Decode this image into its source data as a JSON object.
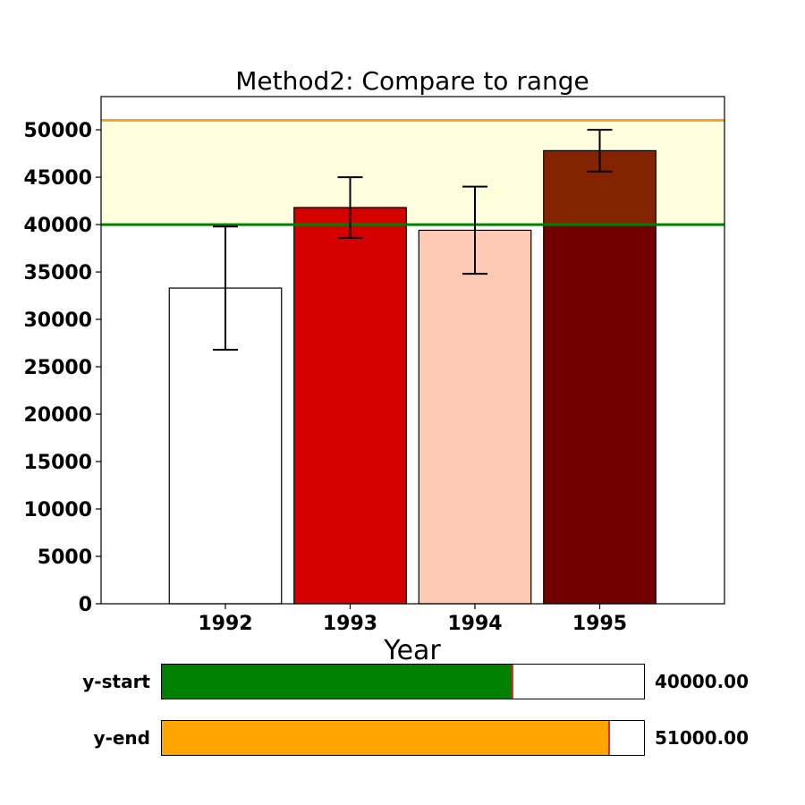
{
  "chart_data": {
    "type": "bar",
    "title": "Method2: Compare to range",
    "xlabel": "Year",
    "ylabel": "",
    "categories": [
      "1992",
      "1993",
      "1994",
      "1995"
    ],
    "values": [
      33300,
      41800,
      39400,
      47800
    ],
    "errors": [
      6500,
      3200,
      4600,
      2200
    ],
    "ylim": [
      0,
      53500
    ],
    "yticks": [
      0,
      5000,
      10000,
      15000,
      20000,
      25000,
      30000,
      35000,
      40000,
      45000,
      50000
    ],
    "range": {
      "start": 40000,
      "end": 51000
    },
    "colors": {
      "bars": [
        "#ffffff",
        "#d40000",
        "#ffcab3",
        "#720000"
      ],
      "range_fill": "#ffffdd",
      "start_line": "#008000",
      "end_line": "#f5a623"
    },
    "grid": false
  },
  "sliders": [
    {
      "label": "y-start",
      "value": 40000,
      "min": 0,
      "max": 55000,
      "value_text": "40000.00",
      "color": "#008000"
    },
    {
      "label": "y-end",
      "value": 51000,
      "min": 0,
      "max": 55000,
      "value_text": "51000.00",
      "color": "#ffa500"
    }
  ]
}
